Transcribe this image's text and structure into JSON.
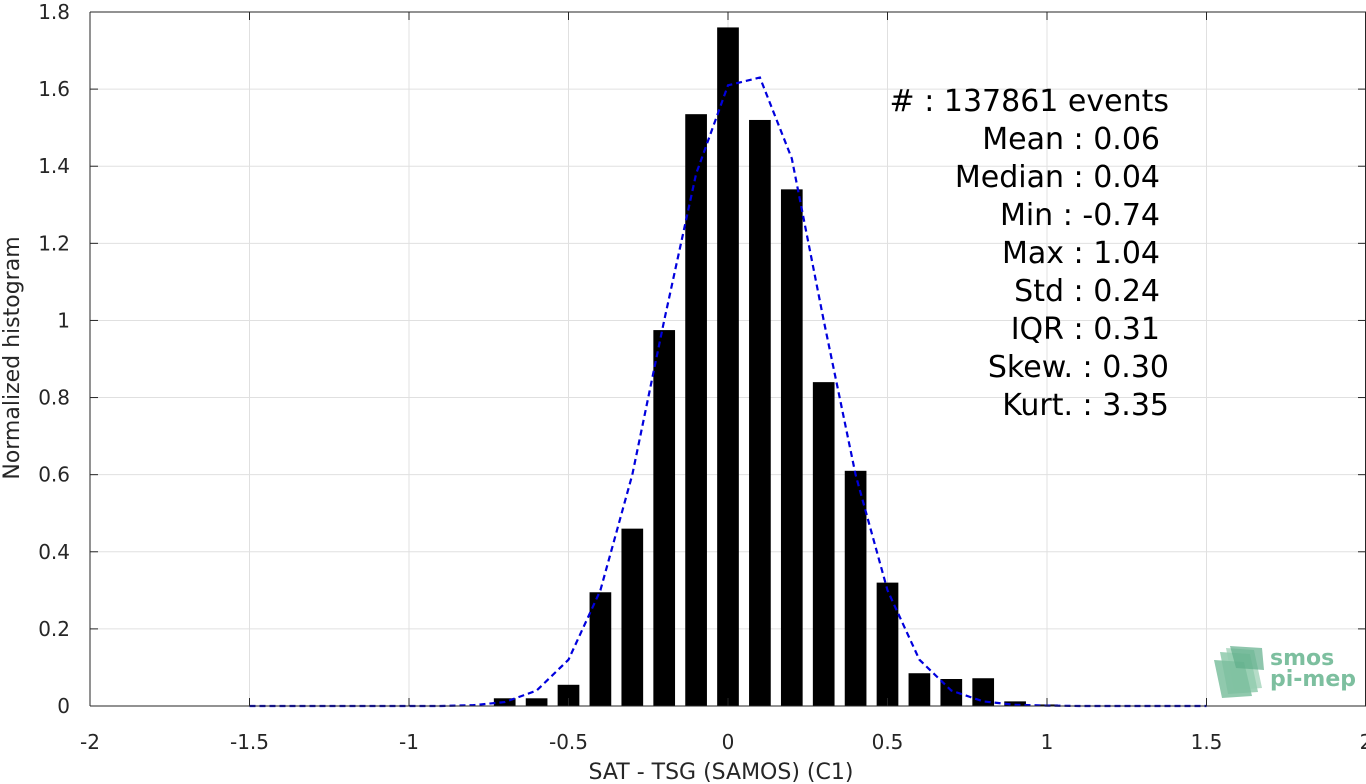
{
  "chart_data": {
    "type": "bar",
    "xlabel": "SAT - TSG (SAMOS) (C1)",
    "ylabel": "Normalized histogram",
    "xlim": [
      -2,
      2
    ],
    "ylim": [
      0,
      1.8
    ],
    "grid": true,
    "x_ticks": [
      "-2",
      "-1.5",
      "-1",
      "-0.5",
      "0",
      "0.5",
      "1",
      "1.5",
      "2"
    ],
    "y_ticks": [
      "0",
      "0.2",
      "0.4",
      "0.6",
      "0.8",
      "1",
      "1.2",
      "1.4",
      "1.6",
      "1.8"
    ],
    "bar_color": "#000000",
    "bars": {
      "x": [
        -0.7,
        -0.6,
        -0.5,
        -0.4,
        -0.3,
        -0.2,
        -0.1,
        0.0,
        0.1,
        0.2,
        0.3,
        0.4,
        0.5,
        0.6,
        0.7,
        0.8,
        0.9,
        1.0
      ],
      "values": [
        0.02,
        0.02,
        0.055,
        0.295,
        0.46,
        0.975,
        1.535,
        1.76,
        1.52,
        1.34,
        0.84,
        0.61,
        0.32,
        0.085,
        0.07,
        0.072,
        0.012,
        0.004
      ]
    },
    "fit": {
      "style": "dashed",
      "color": "#0000dd",
      "x": [
        -1.5,
        -1.4,
        -1.3,
        -1.2,
        -1.1,
        -1.0,
        -0.9,
        -0.8,
        -0.7,
        -0.6,
        -0.5,
        -0.4,
        -0.3,
        -0.2,
        -0.1,
        0.0,
        0.1,
        0.2,
        0.3,
        0.4,
        0.5,
        0.6,
        0.7,
        0.8,
        0.9,
        1.0,
        1.1,
        1.2,
        1.3,
        1.4,
        1.5
      ],
      "y": [
        0,
        0,
        0,
        0,
        0,
        0,
        0,
        0.002,
        0.01,
        0.04,
        0.12,
        0.3,
        0.6,
        1.0,
        1.38,
        1.61,
        1.63,
        1.42,
        1.0,
        0.6,
        0.3,
        0.12,
        0.04,
        0.012,
        0.003,
        0.001,
        0,
        0,
        0,
        0,
        0
      ]
    },
    "annotations": [
      "#  : 137861 events",
      "Mean : 0.06",
      "Median : 0.04",
      "Min : -0.74",
      "Max : 1.04",
      "Std : 0.24",
      "IQR : 0.31",
      "Skew. : 0.30",
      "Kurt. : 3.35"
    ]
  },
  "logo": {
    "line1": "smos",
    "line2": "pi-mep",
    "color": "#7dbf9f"
  }
}
